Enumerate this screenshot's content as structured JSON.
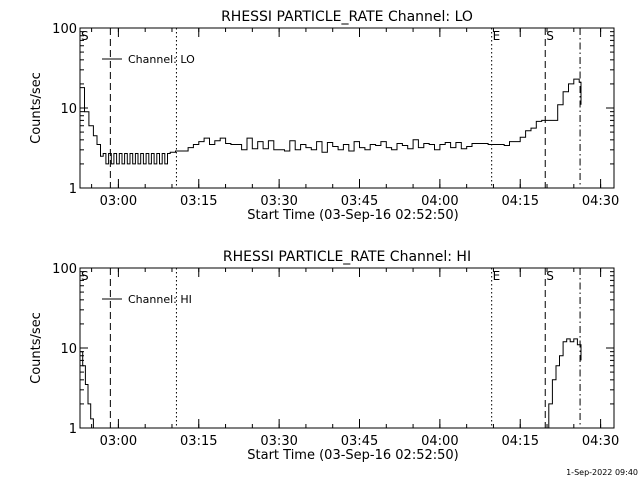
{
  "footer_timestamp": "1-Sep-2022 09:40",
  "chart_data": [
    {
      "type": "line",
      "title": "RHESSI PARTICLE_RATE Channel: LO",
      "xlabel": "Start Time (03-Sep-16 02:52:50)",
      "ylabel": "Counts/sec",
      "y_scale": "log",
      "ylim": [
        1,
        100
      ],
      "y_ticks": [
        1,
        10,
        100
      ],
      "y_tick_labels": [
        "1",
        "10",
        "100"
      ],
      "xlim": [
        "02:52:50",
        "04:32:30"
      ],
      "x_ticks": [
        "03:00",
        "03:15",
        "03:30",
        "03:45",
        "04:00",
        "04:15",
        "04:30"
      ],
      "legend": {
        "position": "top-left",
        "entries": [
          "Channel: LO"
        ]
      },
      "markers": [
        {
          "time": "02:52:50",
          "style": "dashed",
          "label": "S"
        },
        {
          "time": "02:58:30",
          "style": "dashed",
          "label": ""
        },
        {
          "time": "03:10:50",
          "style": "dotted",
          "label": ""
        },
        {
          "time": "04:09:40",
          "style": "dotted",
          "label": "E"
        },
        {
          "time": "04:19:40",
          "style": "dashed",
          "label": "S"
        },
        {
          "time": "04:26:10",
          "style": "dashdot",
          "label": ""
        }
      ],
      "series": [
        {
          "x": [
            "02:52:50",
            "02:53:40",
            "02:54:30",
            "02:55:20",
            "02:56:00",
            "02:56:40",
            "02:57:10",
            "02:57:40",
            "02:58:10",
            "02:58:40",
            "02:59:10",
            "02:59:40",
            "03:00:10",
            "03:00:40",
            "03:01:10",
            "03:01:40",
            "03:02:10",
            "03:02:40",
            "03:03:10",
            "03:03:40",
            "03:04:10",
            "03:04:40",
            "03:05:10",
            "03:05:40",
            "03:06:10",
            "03:06:40",
            "03:07:10",
            "03:07:40",
            "03:08:10",
            "03:08:40",
            "03:09:10",
            "03:09:40",
            "03:10:10",
            "03:10:40",
            "03:12:00",
            "03:13:00",
            "03:14:00",
            "03:15:00",
            "03:16:00",
            "03:17:00",
            "03:18:00",
            "03:19:00",
            "03:20:00",
            "03:21:00",
            "03:22:00",
            "03:23:00",
            "03:24:00",
            "03:25:00",
            "03:26:00",
            "03:27:00",
            "03:28:00",
            "03:29:00",
            "03:30:00",
            "03:31:00",
            "03:32:00",
            "03:33:00",
            "03:34:00",
            "03:35:00",
            "03:36:00",
            "03:37:00",
            "03:38:00",
            "03:39:00",
            "03:40:00",
            "03:41:00",
            "03:42:00",
            "03:43:00",
            "03:44:00",
            "03:45:00",
            "03:46:00",
            "03:47:00",
            "03:48:00",
            "03:49:00",
            "03:50:00",
            "03:51:00",
            "03:52:00",
            "03:53:00",
            "03:54:00",
            "03:55:00",
            "03:56:00",
            "03:57:00",
            "03:58:00",
            "03:59:00",
            "04:00:00",
            "04:01:00",
            "04:02:00",
            "04:03:00",
            "04:04:00",
            "04:05:00",
            "04:06:00",
            "04:07:00",
            "04:08:00",
            "04:09:00",
            "04:10:00",
            "04:11:00",
            "04:12:00",
            "04:13:00",
            "04:14:00",
            "04:15:00",
            "04:16:00",
            "04:17:00",
            "04:18:00",
            "04:19:00",
            "04:20:00",
            "04:21:00",
            "04:22:00",
            "04:23:00",
            "04:24:00",
            "04:25:00",
            "04:26:00",
            "04:26:20"
          ],
          "y": [
            18,
            9,
            6,
            4.5,
            3.5,
            2.5,
            2.7,
            2.0,
            2.7,
            2.0,
            2.7,
            2.0,
            2.7,
            2.0,
            2.7,
            2.0,
            2.7,
            2.0,
            2.7,
            2.0,
            2.7,
            2.0,
            2.7,
            2.0,
            2.7,
            2.0,
            2.7,
            2.0,
            2.7,
            2.0,
            2.7,
            2.8,
            2.8,
            2.9,
            2.9,
            3.2,
            3.5,
            3.8,
            4.2,
            3.5,
            3.9,
            4.2,
            3.6,
            3.5,
            3.5,
            3.0,
            4.2,
            3.1,
            3.8,
            3.1,
            3.9,
            3.0,
            3.0,
            2.9,
            3.9,
            3.0,
            3.5,
            3.2,
            3.0,
            3.8,
            2.8,
            3.7,
            3.3,
            3.0,
            3.5,
            2.9,
            3.8,
            3.2,
            3.0,
            3.5,
            3.4,
            3.8,
            3.2,
            3.0,
            3.6,
            3.4,
            3.1,
            4.0,
            3.2,
            3.6,
            3.5,
            3.0,
            3.5,
            3.7,
            3.2,
            3.7,
            3.1,
            3.3,
            3.6,
            3.6,
            3.6,
            3.5,
            3.5,
            3.5,
            3.4,
            3.8,
            3.8,
            4.3,
            5.2,
            5.6,
            6.8,
            7.0,
            7.0,
            7.0,
            11,
            16,
            20,
            23,
            21,
            11
          ]
        }
      ]
    },
    {
      "type": "line",
      "title": "RHESSI PARTICLE_RATE Channel: HI",
      "xlabel": "Start Time (03-Sep-16 02:52:50)",
      "ylabel": "Counts/sec",
      "y_scale": "log",
      "ylim": [
        1,
        100
      ],
      "y_ticks": [
        1,
        10,
        100
      ],
      "y_tick_labels": [
        "1",
        "10",
        "100"
      ],
      "xlim": [
        "02:52:50",
        "04:32:30"
      ],
      "x_ticks": [
        "03:00",
        "03:15",
        "03:30",
        "03:45",
        "04:00",
        "04:15",
        "04:30"
      ],
      "legend": {
        "position": "top-left",
        "entries": [
          "Channel: HI"
        ]
      },
      "markers": [
        {
          "time": "02:52:50",
          "style": "dashed",
          "label": "S"
        },
        {
          "time": "02:58:30",
          "style": "dashed",
          "label": ""
        },
        {
          "time": "03:10:50",
          "style": "dotted",
          "label": ""
        },
        {
          "time": "04:09:40",
          "style": "dotted",
          "label": "E"
        },
        {
          "time": "04:19:40",
          "style": "dashed",
          "label": "S"
        },
        {
          "time": "04:26:10",
          "style": "dashdot",
          "label": ""
        }
      ],
      "series": [
        {
          "segments": [
            {
              "x": [
                "02:52:50",
                "02:53:20",
                "02:53:50",
                "02:54:20",
                "02:54:50",
                "02:55:20"
              ],
              "y": [
                9,
                6,
                3.5,
                2,
                1.3,
                0.9
              ]
            },
            {
              "x": [
                "04:19:40",
                "04:20:20",
                "04:21:00",
                "04:21:40",
                "04:22:20",
                "04:23:00",
                "04:23:40",
                "04:24:20",
                "04:25:00",
                "04:25:40",
                "04:26:20"
              ],
              "y": [
                0.9,
                2,
                4,
                6,
                8,
                12,
                13,
                12,
                13,
                11,
                7
              ]
            }
          ]
        }
      ]
    }
  ]
}
